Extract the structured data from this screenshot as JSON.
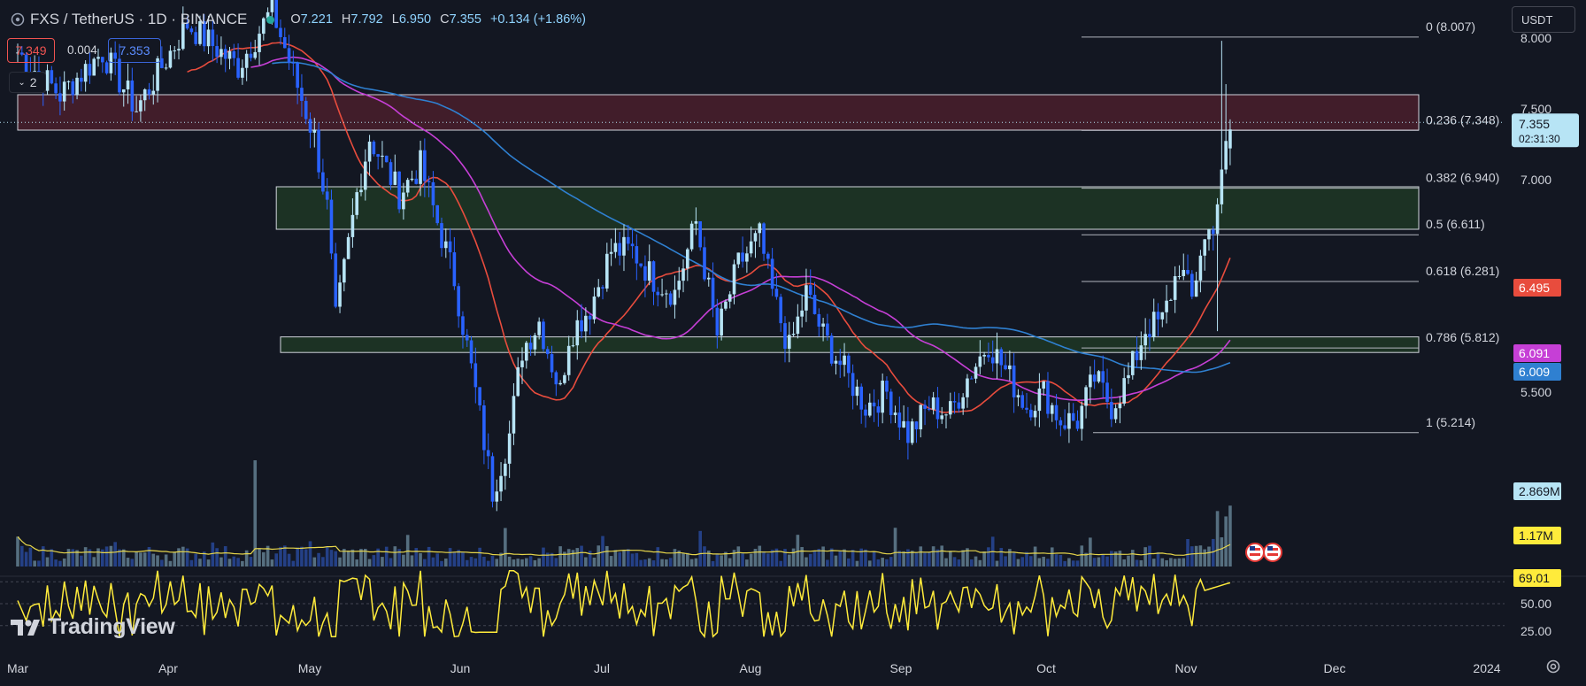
{
  "header": {
    "title": "FXS / TetherUS · 1D · BINANCE",
    "ohlc": [
      {
        "k": "O",
        "v": "7.221"
      },
      {
        "k": "H",
        "v": "7.792"
      },
      {
        "k": "L",
        "v": "6.950"
      },
      {
        "k": "C",
        "v": "7.355"
      }
    ],
    "change": "+0.134 (+1.86%)",
    "sell_price": "7.349",
    "spread": "0.004",
    "buy_price": "7.353",
    "indicators_collapsed": "2",
    "currency": "USDT"
  },
  "colors": {
    "background": "#131722",
    "up": "#b7e4f5",
    "down": "#2962ff",
    "ma20": "#e84c3d",
    "ma50": "#c63fd6",
    "ma100": "#2f80d1",
    "volume_ma": "#e8d74b",
    "rsi": "#ffeb3b",
    "resistance_zone": "#4a1f2c",
    "support_zone": "#1f3a26"
  },
  "chart_data": [
    {
      "type": "candlestick",
      "title": "FXS / TetherUS · 1D · BINANCE",
      "x_axis_labels": [
        "Mar",
        "Apr",
        "May",
        "Jun",
        "Jul",
        "Aug",
        "Sep",
        "Oct",
        "Nov",
        "Dec",
        "2024"
      ],
      "y_axis_ticks": [
        "8.000",
        "7.500",
        "7.000",
        "5.500"
      ],
      "ylim": [
        4.6,
        8.2
      ],
      "date_range": [
        "2023-03-01",
        "2023-11-17"
      ],
      "candles_approx": [
        {
          "date": "2023-03-10",
          "open": 7.9,
          "high": 8.4,
          "low": 5.6,
          "close": 7.4
        },
        {
          "date": "2023-03-28",
          "open": 7.9,
          "high": 8.1,
          "low": 7.3,
          "close": 7.5
        },
        {
          "date": "2023-05-08",
          "open": 7.3,
          "high": 7.8,
          "low": 6.9,
          "close": 7.3
        },
        {
          "date": "2023-05-12",
          "open": 6.8,
          "high": 7.0,
          "low": 5.85,
          "close": 5.9
        },
        {
          "date": "2023-05-22",
          "open": 6.9,
          "high": 7.35,
          "low": 6.7,
          "close": 7.3
        },
        {
          "date": "2023-06-11",
          "open": 5.3,
          "high": 5.5,
          "low": 4.75,
          "close": 4.9
        },
        {
          "date": "2023-06-20",
          "open": 5.7,
          "high": 6.1,
          "low": 5.6,
          "close": 6.0
        },
        {
          "date": "2023-07-02",
          "open": 6.2,
          "high": 6.95,
          "low": 6.1,
          "close": 6.7
        },
        {
          "date": "2023-08-10",
          "open": 6.4,
          "high": 7.0,
          "low": 6.3,
          "close": 6.6
        },
        {
          "date": "2023-08-17",
          "open": 6.3,
          "high": 6.4,
          "low": 5.7,
          "close": 5.8
        },
        {
          "date": "2023-09-11",
          "open": 5.4,
          "high": 5.5,
          "low": 5.05,
          "close": 5.15
        },
        {
          "date": "2023-10-02",
          "open": 5.8,
          "high": 6.05,
          "low": 5.6,
          "close": 5.9
        },
        {
          "date": "2023-10-20",
          "open": 5.3,
          "high": 5.7,
          "low": 5.2,
          "close": 5.25
        },
        {
          "date": "2023-11-02",
          "open": 5.7,
          "high": 6.1,
          "low": 5.6,
          "close": 6.0
        },
        {
          "date": "2023-11-10",
          "open": 6.4,
          "high": 7.3,
          "low": 5.5,
          "close": 7.0
        },
        {
          "date": "2023-11-14",
          "open": 6.95,
          "high": 8.007,
          "low": 6.9,
          "close": 7.221
        },
        {
          "date": "2023-11-17",
          "open": 7.221,
          "high": 7.792,
          "low": 6.95,
          "close": 7.355
        }
      ],
      "last_price": "7.355",
      "countdown": "02:31:30",
      "fibonacci": [
        {
          "label": "0 (8.007)",
          "value": 8.007
        },
        {
          "label": "0.236 (7.348)",
          "value": 7.348
        },
        {
          "label": "0.382 (6.940)",
          "value": 6.94
        },
        {
          "label": "0.5 (6.611)",
          "value": 6.611
        },
        {
          "label": "0.618 (6.281)",
          "value": 6.281
        },
        {
          "label": "0.786 (5.812)",
          "value": 5.812
        },
        {
          "label": "1 (5.214)",
          "value": 5.214
        }
      ],
      "zones": [
        {
          "type": "resistance",
          "from": 7.35,
          "to": 7.6,
          "start": "2023-03-01"
        },
        {
          "type": "support",
          "from": 6.65,
          "to": 6.95,
          "start": "2023-05-01"
        },
        {
          "type": "support",
          "from": 5.78,
          "to": 5.89,
          "start": "2023-05-02"
        }
      ],
      "moving_averages": [
        {
          "name": "MA 20",
          "last_value": "6.495",
          "color": "#e84c3d"
        },
        {
          "name": "MA 50",
          "last_value": "6.091",
          "color": "#c63fd6"
        },
        {
          "name": "MA 100",
          "last_value": "6.009",
          "color": "#2f80d1"
        }
      ],
      "volume": {
        "last_value": "2.869M",
        "ma_value": "1.17M"
      }
    },
    {
      "type": "line",
      "y_axis_ticks": [
        "50.00",
        "25.00"
      ],
      "ylim": [
        15,
        85
      ],
      "last_value": "69.01",
      "levels": [
        70,
        50,
        30
      ]
    }
  ]
}
